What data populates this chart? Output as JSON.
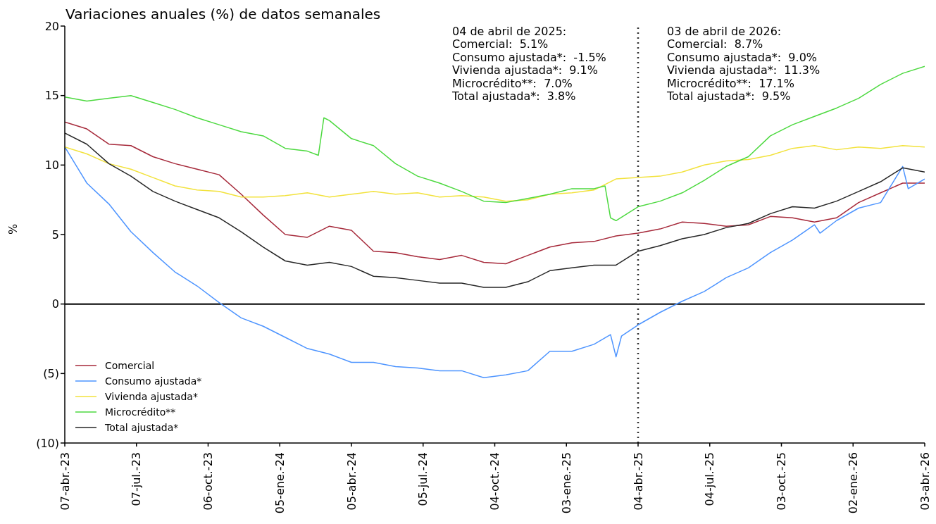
{
  "chart_data": {
    "type": "line",
    "title": "Variaciones anuales (%) de datos semanales",
    "ylabel": "%",
    "x": [
      "2023-04-07",
      "2023-05-05",
      "2023-06-02",
      "2023-06-30",
      "2023-07-28",
      "2023-08-25",
      "2023-09-22",
      "2023-10-20",
      "2023-11-17",
      "2023-12-15",
      "2024-01-12",
      "2024-02-09",
      "2024-03-08",
      "2024-04-05",
      "2024-05-03",
      "2024-05-31",
      "2024-06-28",
      "2024-07-26",
      "2024-08-23",
      "2024-09-20",
      "2024-10-18",
      "2024-11-15",
      "2024-12-13",
      "2025-01-10",
      "2025-02-07",
      "2025-03-07",
      "2025-04-04",
      "2025-05-02",
      "2025-05-30",
      "2025-06-27",
      "2025-07-25",
      "2025-08-22",
      "2025-09-19",
      "2025-10-17",
      "2025-11-14",
      "2025-12-12",
      "2026-01-09",
      "2026-02-06",
      "2026-03-06",
      "2026-04-03"
    ],
    "series": [
      {
        "name": "Comercial",
        "color": "#a6293a",
        "values": [
          13.1,
          12.6,
          11.5,
          11.4,
          10.6,
          10.1,
          9.7,
          9.3,
          7.9,
          6.4,
          5.0,
          4.8,
          5.6,
          5.3,
          3.8,
          3.7,
          3.4,
          3.2,
          3.5,
          3.0,
          2.9,
          3.5,
          4.1,
          4.4,
          4.5,
          4.9,
          5.1,
          5.4,
          5.9,
          5.8,
          5.6,
          5.7,
          6.3,
          6.2,
          5.9,
          6.2,
          7.3,
          8.0,
          8.7,
          8.7
        ]
      },
      {
        "name": "Consumo ajustada*",
        "color": "#4d94ff",
        "x": [
          "2023-04-07",
          "2023-05-05",
          "2023-06-02",
          "2023-06-30",
          "2023-07-28",
          "2023-08-25",
          "2023-09-22",
          "2023-10-20",
          "2023-11-17",
          "2023-12-15",
          "2024-01-12",
          "2024-02-09",
          "2024-03-08",
          "2024-04-05",
          "2024-05-03",
          "2024-05-31",
          "2024-06-28",
          "2024-07-26",
          "2024-08-23",
          "2024-09-20",
          "2024-10-18",
          "2024-11-15",
          "2024-12-13",
          "2025-01-10",
          "2025-02-07",
          "2025-02-28",
          "2025-03-07",
          "2025-03-14",
          "2025-04-04",
          "2025-05-02",
          "2025-05-30",
          "2025-06-27",
          "2025-07-25",
          "2025-08-22",
          "2025-09-19",
          "2025-10-17",
          "2025-11-14",
          "2025-11-21",
          "2025-12-12",
          "2026-01-09",
          "2026-02-06",
          "2026-03-06",
          "2026-03-13",
          "2026-04-03"
        ],
        "values": [
          11.3,
          8.7,
          7.2,
          5.2,
          3.7,
          2.3,
          1.3,
          0.1,
          -1.0,
          -1.6,
          -2.4,
          -3.2,
          -3.6,
          -4.2,
          -4.2,
          -4.5,
          -4.6,
          -4.8,
          -4.8,
          -5.3,
          -5.1,
          -4.8,
          -3.4,
          -3.4,
          -2.9,
          -2.2,
          -3.8,
          -2.3,
          -1.5,
          -0.6,
          0.2,
          0.9,
          1.9,
          2.6,
          3.7,
          4.6,
          5.7,
          5.1,
          6.0,
          6.9,
          7.3,
          9.9,
          8.3,
          9.0
        ]
      },
      {
        "name": "Vivienda ajustada*",
        "color": "#f2e23c",
        "values": [
          11.3,
          10.8,
          10.1,
          9.7,
          9.1,
          8.5,
          8.2,
          8.1,
          7.7,
          7.7,
          7.8,
          8.0,
          7.7,
          7.9,
          8.1,
          7.9,
          8.0,
          7.7,
          7.8,
          7.7,
          7.4,
          7.5,
          7.9,
          8.0,
          8.2,
          9.0,
          9.1,
          9.2,
          9.5,
          10.0,
          10.3,
          10.4,
          10.7,
          11.2,
          11.4,
          11.1,
          11.3,
          11.2,
          11.4,
          11.3
        ]
      },
      {
        "name": "Microcrédito**",
        "color": "#4cd93f",
        "x": [
          "2023-04-07",
          "2023-05-05",
          "2023-06-02",
          "2023-06-30",
          "2023-07-28",
          "2023-08-25",
          "2023-09-22",
          "2023-10-20",
          "2023-11-17",
          "2023-12-15",
          "2024-01-12",
          "2024-02-09",
          "2024-02-23",
          "2024-03-01",
          "2024-03-08",
          "2024-04-05",
          "2024-05-03",
          "2024-05-31",
          "2024-06-28",
          "2024-07-26",
          "2024-08-23",
          "2024-09-20",
          "2024-10-18",
          "2024-11-15",
          "2024-12-13",
          "2025-01-10",
          "2025-02-07",
          "2025-02-21",
          "2025-02-28",
          "2025-03-07",
          "2025-04-04",
          "2025-05-02",
          "2025-05-30",
          "2025-06-27",
          "2025-07-25",
          "2025-08-22",
          "2025-09-19",
          "2025-10-17",
          "2025-11-14",
          "2025-12-12",
          "2026-01-09",
          "2026-02-06",
          "2026-03-06",
          "2026-04-03"
        ],
        "values": [
          14.9,
          14.6,
          14.8,
          15.0,
          14.5,
          14.0,
          13.4,
          12.9,
          12.4,
          12.1,
          11.2,
          11.0,
          10.7,
          13.4,
          13.2,
          11.9,
          11.4,
          10.1,
          9.2,
          8.7,
          8.1,
          7.4,
          7.3,
          7.6,
          7.9,
          8.3,
          8.3,
          8.5,
          6.2,
          6.0,
          7.0,
          7.4,
          8.0,
          8.9,
          9.9,
          10.6,
          12.1,
          12.9,
          13.5,
          14.1,
          14.8,
          15.8,
          16.6,
          17.1
        ]
      },
      {
        "name": "Total ajustada*",
        "color": "#262626",
        "values": [
          12.3,
          11.5,
          10.1,
          9.2,
          8.1,
          7.4,
          6.8,
          6.2,
          5.2,
          4.1,
          3.1,
          2.8,
          3.0,
          2.7,
          2.0,
          1.9,
          1.7,
          1.5,
          1.5,
          1.2,
          1.2,
          1.6,
          2.4,
          2.6,
          2.8,
          2.8,
          3.8,
          4.2,
          4.7,
          5.0,
          5.5,
          5.8,
          6.5,
          7.0,
          6.9,
          7.4,
          8.1,
          8.8,
          9.8,
          9.5
        ]
      }
    ],
    "xlim": [
      "2023-04-07",
      "2026-04-03"
    ],
    "xticks": [
      {
        "value": "2023-04-07",
        "label": "07-abr.-23"
      },
      {
        "value": "2023-07-07",
        "label": "07-jul.-23"
      },
      {
        "value": "2023-10-06",
        "label": "06-oct.-23"
      },
      {
        "value": "2024-01-05",
        "label": "05-ene.-24"
      },
      {
        "value": "2024-04-05",
        "label": "05-abr.-24"
      },
      {
        "value": "2024-07-05",
        "label": "05-jul.-24"
      },
      {
        "value": "2024-10-04",
        "label": "04-oct.-24"
      },
      {
        "value": "2025-01-03",
        "label": "03-ene.-25"
      },
      {
        "value": "2025-04-04",
        "label": "04-abr.-25"
      },
      {
        "value": "2025-07-04",
        "label": "04-jul.-25"
      },
      {
        "value": "2025-10-03",
        "label": "03-oct.-25"
      },
      {
        "value": "2026-01-02",
        "label": "02-ene.-26"
      },
      {
        "value": "2026-04-03",
        "label": "03-abr.-26"
      }
    ],
    "ylim": [
      -10,
      20
    ],
    "yticks": [
      {
        "value": -10,
        "label": "(10)"
      },
      {
        "value": -5,
        "label": "(5)"
      },
      0,
      5,
      10,
      15,
      20
    ],
    "ref_lines": [
      {
        "axis": "y",
        "value": 0,
        "color": "#000000",
        "line_style": "solid"
      },
      {
        "axis": "x",
        "value": "2025-04-04",
        "color": "#333333",
        "line_style": "dotted"
      }
    ],
    "annotations": [
      "04 de abril de 2025:",
      "Comercial:  5.1%",
      "Consumo ajustada*:  -1.5%",
      "Vivienda ajustada*:  9.1%",
      "Microcrédito**:  7.0%",
      "Total ajustada*:  3.8%",
      "03 de abril de 2026:",
      "Comercial:  8.7%",
      "Consumo ajustada*:  9.0%",
      "Vivienda ajustada*:  11.3%",
      "Microcrédito**:  17.1%",
      "Total ajustada*:  9.5%"
    ],
    "grid": false,
    "legend": "bottom left",
    "line_style": "solid"
  }
}
